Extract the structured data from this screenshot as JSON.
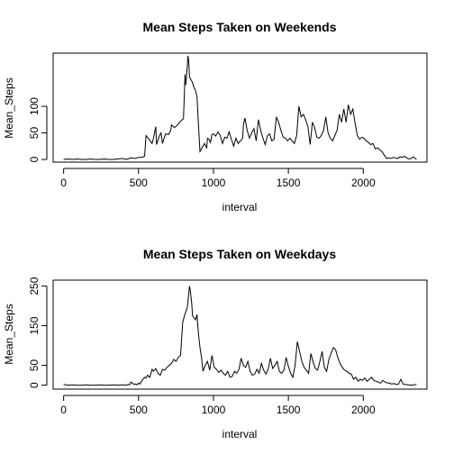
{
  "chart_data": [
    {
      "type": "line",
      "title": "Mean Steps Taken on Weekends",
      "xlabel": "interval",
      "ylabel": "Mean_Steps",
      "xlim": [
        -70,
        2425
      ],
      "ylim": [
        -5,
        200
      ],
      "xticks": [
        "0",
        "500",
        "1000",
        "1500",
        "2000"
      ],
      "yticks": [
        "0",
        "50",
        "100"
      ],
      "x": [
        0,
        30,
        60,
        90,
        120,
        150,
        180,
        210,
        240,
        270,
        300,
        330,
        360,
        390,
        420,
        450,
        480,
        500,
        520,
        540,
        550,
        570,
        590,
        600,
        615,
        620,
        640,
        650,
        660,
        680,
        700,
        715,
        720,
        740,
        760,
        780,
        800,
        810,
        815,
        825,
        830,
        835,
        840,
        850,
        860,
        870,
        880,
        890,
        900,
        910,
        920,
        930,
        940,
        955,
        960,
        970,
        980,
        990,
        1000,
        1015,
        1030,
        1045,
        1060,
        1075,
        1090,
        1105,
        1120,
        1135,
        1150,
        1165,
        1180,
        1195,
        1200,
        1210,
        1225,
        1240,
        1255,
        1270,
        1285,
        1300,
        1315,
        1330,
        1345,
        1360,
        1375,
        1390,
        1405,
        1420,
        1435,
        1450,
        1465,
        1480,
        1495,
        1510,
        1525,
        1540,
        1555,
        1570,
        1585,
        1600,
        1615,
        1630,
        1645,
        1660,
        1675,
        1690,
        1705,
        1720,
        1735,
        1750,
        1765,
        1780,
        1795,
        1810,
        1825,
        1840,
        1855,
        1870,
        1885,
        1900,
        1915,
        1930,
        1945,
        1960,
        1975,
        1990,
        2005,
        2020,
        2035,
        2050,
        2065,
        2080,
        2095,
        2110,
        2125,
        2140,
        2155,
        2170,
        2185,
        2200,
        2215,
        2230,
        2245,
        2260,
        2275,
        2290,
        2305,
        2320,
        2335,
        2355
      ],
      "y": [
        0,
        1,
        0,
        1,
        0,
        0,
        1,
        0,
        0,
        1,
        0,
        0,
        1,
        2,
        0,
        3,
        2,
        4,
        4,
        6,
        45,
        38,
        30,
        40,
        62,
        28,
        45,
        50,
        30,
        48,
        47,
        55,
        65,
        60,
        65,
        72,
        77,
        160,
        140,
        175,
        195,
        185,
        155,
        150,
        145,
        135,
        130,
        118,
        65,
        15,
        20,
        25,
        30,
        22,
        40,
        38,
        32,
        47,
        48,
        44,
        52,
        45,
        30,
        42,
        40,
        52,
        38,
        25,
        40,
        30,
        35,
        40,
        65,
        78,
        55,
        40,
        50,
        58,
        35,
        75,
        55,
        40,
        28,
        45,
        48,
        35,
        38,
        80,
        70,
        55,
        42,
        40,
        35,
        40,
        35,
        30,
        45,
        100,
        80,
        85,
        75,
        62,
        28,
        70,
        60,
        42,
        40,
        45,
        55,
        80,
        50,
        40,
        35,
        45,
        55,
        85,
        70,
        95,
        70,
        103,
        85,
        95,
        68,
        45,
        38,
        42,
        40,
        35,
        32,
        28,
        30,
        20,
        22,
        18,
        15,
        8,
        2,
        3,
        2,
        4,
        3,
        2,
        5,
        4,
        6,
        3,
        1,
        2,
        5,
        0
      ]
    },
    {
      "type": "line",
      "title": "Mean Steps Taken on Weekdays",
      "xlabel": "interval",
      "ylabel": "Mean_Steps",
      "xlim": [
        -70,
        2425
      ],
      "ylim": [
        -10,
        265
      ],
      "xticks": [
        "0",
        "500",
        "1000",
        "1500",
        "2000"
      ],
      "yticks": [
        "0",
        "50",
        "150",
        "250"
      ],
      "x": [
        0,
        30,
        60,
        90,
        120,
        150,
        180,
        210,
        240,
        270,
        300,
        330,
        360,
        390,
        420,
        430,
        440,
        450,
        470,
        480,
        490,
        500,
        510,
        520,
        530,
        540,
        550,
        560,
        575,
        590,
        600,
        615,
        630,
        645,
        660,
        675,
        690,
        705,
        720,
        735,
        750,
        765,
        780,
        795,
        810,
        825,
        835,
        840,
        845,
        855,
        860,
        870,
        880,
        890,
        900,
        910,
        920,
        930,
        945,
        960,
        975,
        990,
        1005,
        1020,
        1035,
        1050,
        1065,
        1080,
        1095,
        1110,
        1125,
        1140,
        1155,
        1170,
        1185,
        1200,
        1215,
        1230,
        1245,
        1260,
        1275,
        1290,
        1305,
        1320,
        1335,
        1350,
        1365,
        1380,
        1395,
        1410,
        1425,
        1440,
        1455,
        1470,
        1485,
        1500,
        1515,
        1530,
        1545,
        1560,
        1575,
        1590,
        1605,
        1620,
        1635,
        1650,
        1665,
        1680,
        1695,
        1710,
        1725,
        1740,
        1755,
        1770,
        1785,
        1800,
        1815,
        1830,
        1845,
        1860,
        1875,
        1890,
        1905,
        1920,
        1935,
        1950,
        1965,
        1980,
        1995,
        2010,
        2025,
        2040,
        2055,
        2070,
        2085,
        2100,
        2115,
        2130,
        2145,
        2160,
        2175,
        2190,
        2205,
        2220,
        2235,
        2250,
        2265,
        2280,
        2300,
        2320,
        2355
      ],
      "y": [
        2,
        0,
        1,
        0,
        0,
        1,
        0,
        0,
        1,
        0,
        0,
        1,
        0,
        1,
        0,
        2,
        1,
        8,
        2,
        3,
        1,
        5,
        3,
        10,
        15,
        20,
        18,
        25,
        20,
        40,
        35,
        42,
        30,
        25,
        40,
        38,
        45,
        50,
        55,
        65,
        60,
        70,
        75,
        160,
        180,
        195,
        230,
        250,
        240,
        205,
        175,
        170,
        165,
        178,
        130,
        95,
        70,
        35,
        50,
        60,
        38,
        75,
        45,
        40,
        32,
        38,
        30,
        25,
        35,
        20,
        22,
        35,
        30,
        40,
        68,
        50,
        45,
        60,
        35,
        25,
        28,
        40,
        30,
        55,
        38,
        28,
        40,
        68,
        42,
        50,
        60,
        35,
        30,
        38,
        70,
        48,
        30,
        20,
        50,
        110,
        85,
        60,
        45,
        38,
        30,
        80,
        58,
        42,
        38,
        60,
        85,
        45,
        35,
        65,
        80,
        95,
        90,
        70,
        55,
        45,
        38,
        35,
        30,
        28,
        15,
        20,
        10,
        15,
        12,
        18,
        10,
        15,
        20,
        12,
        10,
        8,
        5,
        12,
        8,
        6,
        5,
        3,
        4,
        2,
        3,
        15,
        3,
        2,
        1,
        0,
        2
      ]
    }
  ]
}
